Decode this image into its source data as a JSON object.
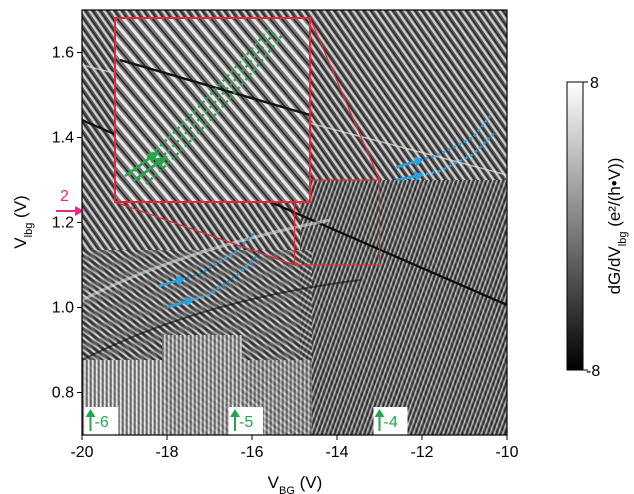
{
  "chart_data": {
    "type": "heatmap",
    "xlabel": {
      "main": "V",
      "sub": "BG",
      "unit": " (V)"
    },
    "ylabel": {
      "main": "V",
      "sub": "lbg",
      "unit": " (V)"
    },
    "xlim": [
      -20,
      -10
    ],
    "ylim": [
      0.7,
      1.7
    ],
    "x_ticks": [
      -20,
      -18,
      -16,
      -14,
      -12,
      -10
    ],
    "x_tick_labels": [
      "-20",
      "-18",
      "-16",
      "-14",
      "-12",
      "-10"
    ],
    "y_ticks": [
      0.8,
      1.0,
      1.2,
      1.4,
      1.6
    ],
    "y_tick_labels": [
      "0.8",
      "1.0",
      "1.2",
      "1.4",
      "1.6"
    ],
    "colorbar": {
      "label": {
        "main": "dG/dV",
        "sub": "lbg",
        "unit": " (e²/(h•V))"
      },
      "min": -8,
      "max": 8,
      "min_label": "-8",
      "max_label": "8",
      "colormap": "grayscale"
    },
    "filling_markers": [
      {
        "label": "-6",
        "x": -19.8,
        "color": "#22a84a",
        "direction": "up"
      },
      {
        "label": "-5",
        "x": -16.4,
        "color": "#22a84a",
        "direction": "up"
      },
      {
        "label": "-4",
        "x": -13.0,
        "color": "#22a84a",
        "direction": "up"
      },
      {
        "label": "2",
        "y": 1.22,
        "color": "#e8288a",
        "direction": "right"
      }
    ],
    "inset": {
      "zoom_region": {
        "x": [
          -15.0,
          -13.0
        ],
        "y": [
          1.1,
          1.3
        ]
      },
      "border_color": "#e8283a"
    },
    "fringe_traces": [
      {
        "color": "#2aa0e0",
        "region": "lower-left",
        "points": [
          [
            -18.2,
            1.05
          ],
          [
            -17.2,
            1.08
          ],
          [
            -16.4,
            1.13
          ],
          [
            -15.9,
            1.18
          ]
        ]
      },
      {
        "color": "#2aa0e0",
        "region": "lower-left",
        "points": [
          [
            -18.0,
            1.0
          ],
          [
            -17.0,
            1.03
          ],
          [
            -16.3,
            1.08
          ],
          [
            -15.8,
            1.13
          ]
        ]
      },
      {
        "color": "#2aa0e0",
        "region": "upper-right",
        "points": [
          [
            -12.6,
            1.33
          ],
          [
            -11.6,
            1.36
          ],
          [
            -10.8,
            1.4
          ],
          [
            -10.4,
            1.45
          ]
        ]
      },
      {
        "color": "#2aa0e0",
        "region": "upper-right",
        "points": [
          [
            -12.6,
            1.3
          ],
          [
            -11.6,
            1.32
          ],
          [
            -10.8,
            1.36
          ],
          [
            -10.3,
            1.41
          ]
        ]
      }
    ]
  }
}
